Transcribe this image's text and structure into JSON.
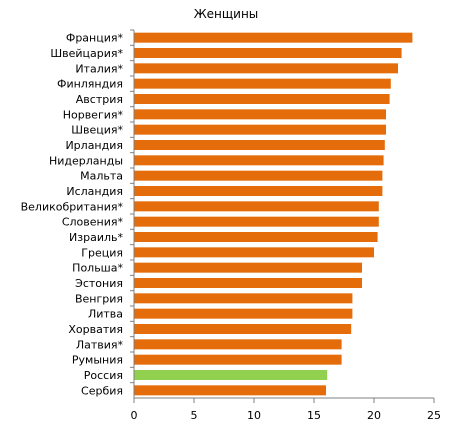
{
  "chart_data": {
    "type": "bar",
    "orientation": "horizontal",
    "title": "Женщины",
    "xlabel": "",
    "ylabel": "",
    "xlim": [
      0,
      25
    ],
    "xticks": [
      0,
      5,
      10,
      15,
      20,
      25
    ],
    "grid": false,
    "categories": [
      "Франция*",
      "Швейцария*",
      "Италия*",
      "Финляндия",
      "Австрия",
      "Норвегия*",
      "Швеция*",
      "Ирландия",
      "Нидерланды",
      "Мальта",
      "Исландия",
      "Великобритания*",
      "Словения*",
      "Израиль*",
      "Греция",
      "Польша*",
      "Эстония",
      "Венгрия",
      "Литва",
      "Хорватия",
      "Латвия*",
      "Румыния",
      "Россия",
      "Сербия"
    ],
    "values": [
      23.2,
      22.3,
      22.0,
      21.4,
      21.3,
      21.0,
      21.0,
      20.9,
      20.8,
      20.7,
      20.7,
      20.4,
      20.4,
      20.3,
      20.0,
      19.0,
      19.0,
      18.2,
      18.2,
      18.1,
      17.3,
      17.3,
      16.1,
      16.0
    ],
    "highlight": "Россия",
    "colors": {
      "bar": "#E46C0A",
      "highlight": "#92D050",
      "axis": "#808080"
    }
  }
}
